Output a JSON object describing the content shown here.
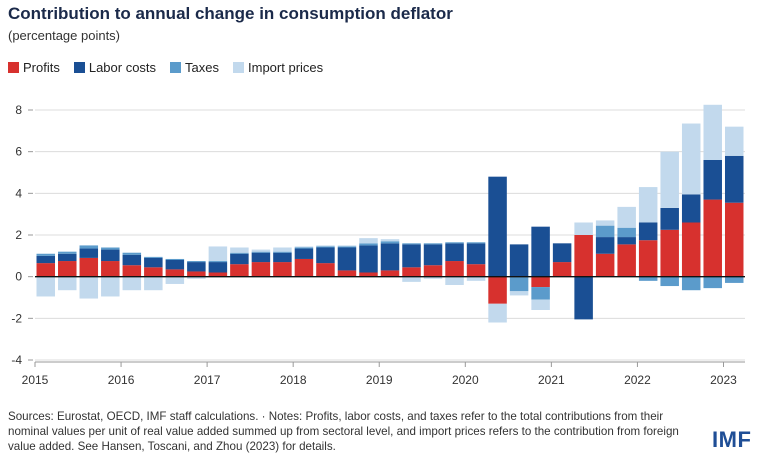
{
  "title": "Contribution to annual change in consumption deflator",
  "subtitle": "(percentage points)",
  "footer": "Sources: Eurostat, OECD, IMF staff calculations. · Notes: Profits, labor costs, and taxes refer to the total contributions from their nominal values per unit of real value added summed up from sectoral level, and import prices refers to the contribution from foreign value added. See Hansen, Toscani, and Zhou (2023) for details.",
  "logo": "IMF",
  "chart_data": {
    "type": "bar",
    "stacked": true,
    "title": "Contribution to annual change in consumption deflator",
    "ylabel": "(percentage points)",
    "xlabel": "",
    "ylim": [
      -4,
      8
    ],
    "yticks": [
      -4,
      -2,
      0,
      2,
      4,
      6,
      8
    ],
    "xticks": [
      "2015",
      "2016",
      "2017",
      "2018",
      "2019",
      "2020",
      "2021",
      "2022",
      "2023"
    ],
    "legend_position": "top-left",
    "categories": [
      "2015Q1",
      "2015Q2",
      "2015Q3",
      "2015Q4",
      "2016Q1",
      "2016Q2",
      "2016Q3",
      "2016Q4",
      "2017Q1",
      "2017Q2",
      "2017Q3",
      "2017Q4",
      "2018Q1",
      "2018Q2",
      "2018Q3",
      "2018Q4",
      "2019Q1",
      "2019Q2",
      "2019Q3",
      "2019Q4",
      "2020Q1",
      "2020Q2",
      "2020Q3",
      "2020Q4",
      "2021Q1",
      "2021Q2",
      "2021Q3",
      "2021Q4",
      "2022Q1",
      "2022Q2",
      "2022Q3",
      "2022Q4",
      "2023Q1"
    ],
    "series": [
      {
        "name": "Profits",
        "color": "#d7312e",
        "values": [
          0.65,
          0.75,
          0.9,
          0.75,
          0.55,
          0.45,
          0.35,
          0.25,
          0.2,
          0.6,
          0.7,
          0.7,
          0.85,
          0.65,
          0.3,
          0.2,
          0.3,
          0.45,
          0.55,
          0.75,
          0.6,
          -1.3,
          0.0,
          -0.5,
          0.7,
          2.0,
          1.1,
          1.55,
          1.75,
          2.25,
          2.6,
          3.7,
          3.55
        ]
      },
      {
        "name": "Labor costs",
        "color": "#1a4f94",
        "values": [
          0.35,
          0.35,
          0.45,
          0.55,
          0.5,
          0.45,
          0.45,
          0.45,
          0.5,
          0.5,
          0.45,
          0.45,
          0.5,
          0.75,
          1.1,
          1.3,
          1.3,
          1.1,
          1.0,
          0.85,
          1.0,
          4.8,
          1.55,
          2.4,
          0.9,
          -2.05,
          0.8,
          0.35,
          0.85,
          1.05,
          1.35,
          1.9,
          2.25
        ]
      },
      {
        "name": "Taxes",
        "color": "#5b9bcb",
        "values": [
          0.1,
          0.1,
          0.15,
          0.1,
          0.1,
          0.05,
          0.05,
          0.05,
          0.05,
          0.05,
          0.05,
          0.05,
          0.05,
          0.05,
          0.05,
          0.1,
          0.1,
          0.05,
          0.05,
          0.05,
          0.05,
          0.0,
          -0.7,
          -0.6,
          0.0,
          0.0,
          0.55,
          0.45,
          -0.2,
          -0.45,
          -0.65,
          -0.55,
          -0.3
        ]
      },
      {
        "name": "Import prices",
        "color": "#c2d9ed",
        "values": [
          -0.95,
          -0.65,
          -1.05,
          -0.95,
          -0.65,
          -0.65,
          -0.35,
          -0.1,
          0.7,
          0.25,
          0.1,
          0.2,
          0.05,
          0.05,
          0.05,
          0.25,
          0.1,
          -0.25,
          -0.1,
          -0.4,
          -0.2,
          -0.9,
          -0.2,
          -0.5,
          0.0,
          0.6,
          0.25,
          1.0,
          1.7,
          2.7,
          3.4,
          2.65,
          1.4
        ]
      }
    ]
  }
}
